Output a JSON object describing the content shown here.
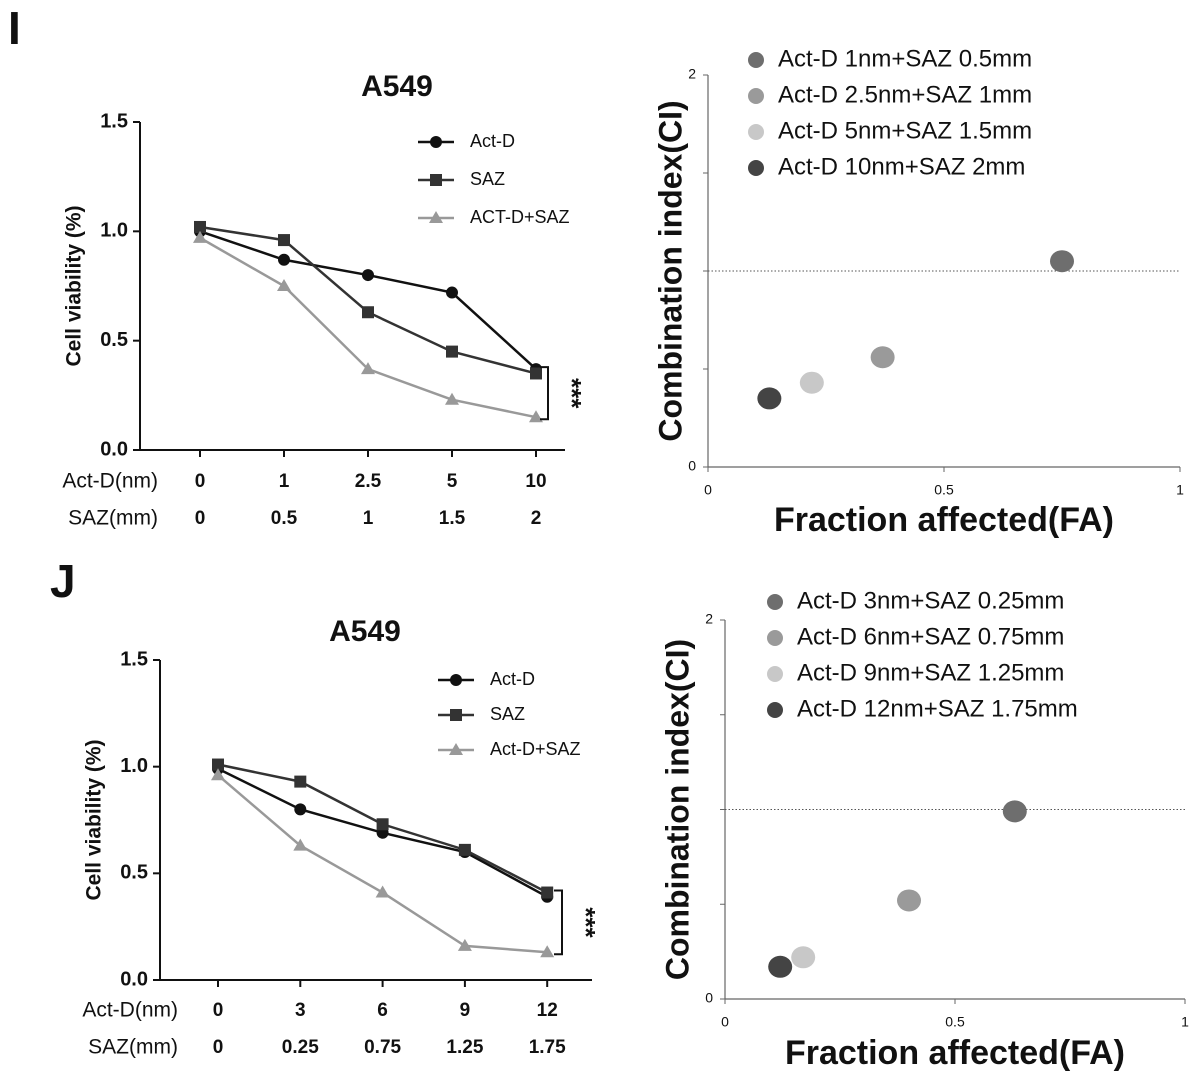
{
  "chart_data": [
    {
      "type": "line",
      "panel": "I",
      "title": "A549",
      "ylabel": "Cell viability (%)",
      "x_row_labels": [
        "Act-D(nm)",
        "SAZ(mm)"
      ],
      "categories": [
        "0",
        "1",
        "2.5",
        "5",
        "10"
      ],
      "categories2": [
        "0",
        "0.5",
        "1",
        "1.5",
        "2"
      ],
      "ylim": [
        0,
        1.5
      ],
      "yticks": [
        {
          "value": 0,
          "label": "0.0"
        },
        0.5,
        {
          "value": 1,
          "label": "1.0"
        },
        1.5
      ],
      "annotation": "***",
      "series": [
        {
          "name": "Act-D",
          "color": "#111111",
          "marker": "circle",
          "values": [
            1.0,
            0.87,
            0.8,
            0.72,
            0.37
          ]
        },
        {
          "name": "SAZ",
          "color": "#333333",
          "marker": "square",
          "values": [
            1.02,
            0.96,
            0.63,
            0.45,
            0.35
          ]
        },
        {
          "name": "ACT-D+SAZ",
          "color": "#999999",
          "marker": "triangle",
          "values": [
            0.97,
            0.75,
            0.37,
            0.23,
            0.15
          ]
        }
      ]
    },
    {
      "type": "scatter",
      "xlabel": "Fraction affected(FA)",
      "ylabel": "Combination index(CI)",
      "xlim": [
        0,
        1
      ],
      "xticks": [
        0,
        0.5,
        1
      ],
      "ylim": [
        0,
        2
      ],
      "yticks": [
        0,
        2
      ],
      "minor_yticks": [
        0.5,
        1,
        1.5
      ],
      "hline": 1,
      "series": [
        {
          "name": "Act-D 1nm+SAZ 0.5mm",
          "color": "#6e6e6e",
          "x": [
            0.75
          ],
          "values": [
            1.05
          ]
        },
        {
          "name": "Act-D 2.5nm+SAZ 1mm",
          "color": "#9a9a9a",
          "x": [
            0.37
          ],
          "values": [
            0.56
          ]
        },
        {
          "name": "Act-D 5nm+SAZ 1.5mm",
          "color": "#c8c8c8",
          "x": [
            0.22
          ],
          "values": [
            0.43
          ]
        },
        {
          "name": "Act-D 10nm+SAZ 2mm",
          "color": "#444444",
          "x": [
            0.13
          ],
          "values": [
            0.35
          ]
        }
      ]
    },
    {
      "type": "line",
      "panel": "J",
      "title": "A549",
      "ylabel": "Cell viability (%)",
      "x_row_labels": [
        "Act-D(nm)",
        "SAZ(mm)"
      ],
      "categories": [
        "0",
        "3",
        "6",
        "9",
        "12"
      ],
      "categories2": [
        "0",
        "0.25",
        "0.75",
        "1.25",
        "1.75"
      ],
      "ylim": [
        0,
        1.5
      ],
      "yticks": [
        {
          "value": 0,
          "label": "0.0"
        },
        0.5,
        {
          "value": 1,
          "label": "1.0"
        },
        1.5
      ],
      "annotation": "***",
      "series": [
        {
          "name": "Act-D",
          "color": "#111111",
          "marker": "circle",
          "values": [
            0.99,
            0.8,
            0.69,
            0.6,
            0.39
          ]
        },
        {
          "name": "SAZ",
          "color": "#333333",
          "marker": "square",
          "values": [
            1.01,
            0.93,
            0.73,
            0.61,
            0.41
          ]
        },
        {
          "name": "Act-D+SAZ",
          "color": "#999999",
          "marker": "triangle",
          "values": [
            0.96,
            0.63,
            0.41,
            0.16,
            0.13
          ]
        }
      ]
    },
    {
      "type": "scatter",
      "xlabel": "Fraction affected(FA)",
      "ylabel": "Combination index(CI)",
      "xlim": [
        0,
        1
      ],
      "xticks": [
        0,
        0.5,
        1
      ],
      "ylim": [
        0,
        2
      ],
      "yticks": [
        0,
        2
      ],
      "minor_yticks": [
        0.5,
        1,
        1.5
      ],
      "hline": 1,
      "series": [
        {
          "name": "Act-D 3nm+SAZ 0.25mm",
          "color": "#6e6e6e",
          "x": [
            0.63
          ],
          "values": [
            0.99
          ]
        },
        {
          "name": "Act-D 6nm+SAZ 0.75mm",
          "color": "#9a9a9a",
          "x": [
            0.4
          ],
          "values": [
            0.52
          ]
        },
        {
          "name": "Act-D 9nm+SAZ 1.25mm",
          "color": "#c8c8c8",
          "x": [
            0.17
          ],
          "values": [
            0.22
          ]
        },
        {
          "name": "Act-D 12nm+SAZ 1.75mm",
          "color": "#444444",
          "x": [
            0.12
          ],
          "values": [
            0.17
          ]
        }
      ]
    }
  ]
}
